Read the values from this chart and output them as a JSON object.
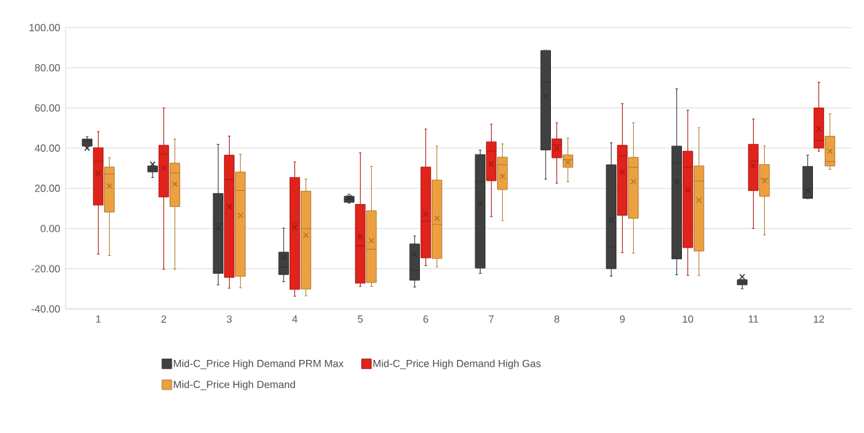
{
  "chart_data": {
    "type": "box",
    "categories": [
      "1",
      "2",
      "3",
      "4",
      "5",
      "6",
      "7",
      "8",
      "9",
      "10",
      "11",
      "12"
    ],
    "ylim": [
      -40,
      100
    ],
    "yticks": [
      {
        "value": -40,
        "label": "-40.00"
      },
      {
        "value": -20,
        "label": "-20.00"
      },
      {
        "value": 0,
        "label": "0.00"
      },
      {
        "value": 20,
        "label": "20.00"
      },
      {
        "value": 40,
        "label": "40.00"
      },
      {
        "value": 60,
        "label": "60.00"
      },
      {
        "value": 80,
        "label": "80.00"
      },
      {
        "value": 100,
        "label": "100.00"
      }
    ],
    "grid": "y",
    "legend": "bottom",
    "series": [
      {
        "name": "Mid-C_Price High Demand PRM Max",
        "color": "#404040",
        "boxes": [
          {
            "low": 40.5,
            "q1": 41,
            "median": 43.5,
            "q3": 44.5,
            "high": 45.7,
            "mean": 40
          },
          {
            "low": 25.4,
            "q1": 28.2,
            "median": 29.7,
            "q3": 31.1,
            "high": 31.1,
            "mean": 32
          },
          {
            "low": -28,
            "q1": -22.3,
            "median": 2.3,
            "q3": 17.4,
            "high": 41.9,
            "mean": 0
          },
          {
            "low": -26.5,
            "q1": -22.9,
            "median": -19.2,
            "q3": -11.8,
            "high": 0.2,
            "mean": -14.3
          },
          {
            "low": 12.6,
            "q1": 13.1,
            "median": 14.5,
            "q3": 16,
            "high": 17.1,
            "mean": 15.4
          },
          {
            "low": -29.1,
            "q1": -25.7,
            "median": -20.8,
            "q3": -7.7,
            "high": -3.7,
            "mean": -12.9
          },
          {
            "low": -22.3,
            "q1": -19.7,
            "median": 23.2,
            "q3": 36.8,
            "high": 39,
            "mean": 12.6
          },
          {
            "low": 24.6,
            "q1": 39.1,
            "median": 72.9,
            "q3": 88.6,
            "high": 88.6,
            "mean": 65.7
          },
          {
            "low": -23.7,
            "q1": -20,
            "median": -9.1,
            "q3": 31.7,
            "high": 42.7,
            "mean": 4.2
          },
          {
            "low": -23,
            "q1": -15.1,
            "median": 32.8,
            "q3": 41,
            "high": 69.5,
            "mean": 23.4
          },
          {
            "low": -30,
            "q1": -28,
            "median": -26.9,
            "q3": -25.5,
            "high": -25.5,
            "mean": -24
          },
          {
            "low": 14.9,
            "q1": 15,
            "median": 15.2,
            "q3": 30.9,
            "high": 36.5,
            "mean": 18.9
          }
        ]
      },
      {
        "name": "Mid-C_Price High Demand High Gas",
        "color": "#e0231b",
        "boxes": [
          {
            "low": -12.8,
            "q1": 11.7,
            "median": 33.5,
            "q3": 40.2,
            "high": 48.2,
            "mean": 27.4
          },
          {
            "low": -20.3,
            "q1": 15.7,
            "median": 37.1,
            "q3": 41.4,
            "high": 60,
            "mean": 30
          },
          {
            "low": -29.7,
            "q1": -24.3,
            "median": 24.3,
            "q3": 36.5,
            "high": 46,
            "mean": 10.9
          },
          {
            "low": -33.7,
            "q1": -30.3,
            "median": 2.9,
            "q3": 25.4,
            "high": 33.1,
            "mean": 0.6
          },
          {
            "low": -28.8,
            "q1": -27.2,
            "median": -8.6,
            "q3": 12,
            "high": 37.6,
            "mean": -4
          },
          {
            "low": -18.5,
            "q1": -14.6,
            "median": 3.8,
            "q3": 30.6,
            "high": 49.5,
            "mean": 7.1
          },
          {
            "low": 5.9,
            "q1": 23.8,
            "median": 38.5,
            "q3": 43.1,
            "high": 51.9,
            "mean": 32.2
          },
          {
            "low": 22.6,
            "q1": 35.2,
            "median": 41.6,
            "q3": 44.6,
            "high": 52.6,
            "mean": 39.8
          },
          {
            "low": -12,
            "q1": 6.6,
            "median": 36.2,
            "q3": 41.4,
            "high": 62.1,
            "mean": 28.2
          },
          {
            "low": -23.3,
            "q1": -9.5,
            "median": 30.5,
            "q3": 38.5,
            "high": 58.9,
            "mean": 19.1
          },
          {
            "low": 0,
            "q1": 18.9,
            "median": 33.5,
            "q3": 41.9,
            "high": 54.5,
            "mean": 31.1
          },
          {
            "low": 38.5,
            "q1": 40,
            "median": 43.9,
            "q3": 60,
            "high": 72.8,
            "mean": 49.7
          }
        ]
      },
      {
        "name": "Mid-C_Price High Demand",
        "color": "#eca040",
        "boxes": [
          {
            "low": -13.4,
            "q1": 8.2,
            "median": 27.1,
            "q3": 30.6,
            "high": 35.2,
            "mean": 21.1
          },
          {
            "low": -20.3,
            "q1": 10.9,
            "median": 27.7,
            "q3": 32.5,
            "high": 44.5,
            "mean": 22.1
          },
          {
            "low": -29.5,
            "q1": -23.8,
            "median": 18.9,
            "q3": 28.1,
            "high": 36.9,
            "mean": 6.5
          },
          {
            "low": -33.5,
            "q1": -30.1,
            "median": 0,
            "q3": 18.6,
            "high": 24.6,
            "mean": -3.4
          },
          {
            "low": -28.8,
            "q1": -26.9,
            "median": -10.3,
            "q3": 8.8,
            "high": 30.9,
            "mean": -6.1
          },
          {
            "low": -19.1,
            "q1": -14.9,
            "median": 2.1,
            "q3": 24.1,
            "high": 41,
            "mean": 5.1
          },
          {
            "low": 4,
            "q1": 19.4,
            "median": 31.8,
            "q3": 35.5,
            "high": 42.1,
            "mean": 26
          },
          {
            "low": 23.3,
            "q1": 30.5,
            "median": 34.3,
            "q3": 36.6,
            "high": 45,
            "mean": 32.9
          },
          {
            "low": -12.3,
            "q1": 5.1,
            "median": 30.5,
            "q3": 35.4,
            "high": 52.7,
            "mean": 23.4
          },
          {
            "low": -23.3,
            "q1": -11.2,
            "median": 23.7,
            "q3": 31.1,
            "high": 50.2,
            "mean": 14.1
          },
          {
            "low": -3.2,
            "q1": 16,
            "median": 24.8,
            "q3": 31.8,
            "high": 41.1,
            "mean": 23.7
          },
          {
            "low": 29.5,
            "q1": 31.1,
            "median": 33.3,
            "q3": 45.9,
            "high": 57.1,
            "mean": 38.5
          }
        ]
      }
    ]
  }
}
